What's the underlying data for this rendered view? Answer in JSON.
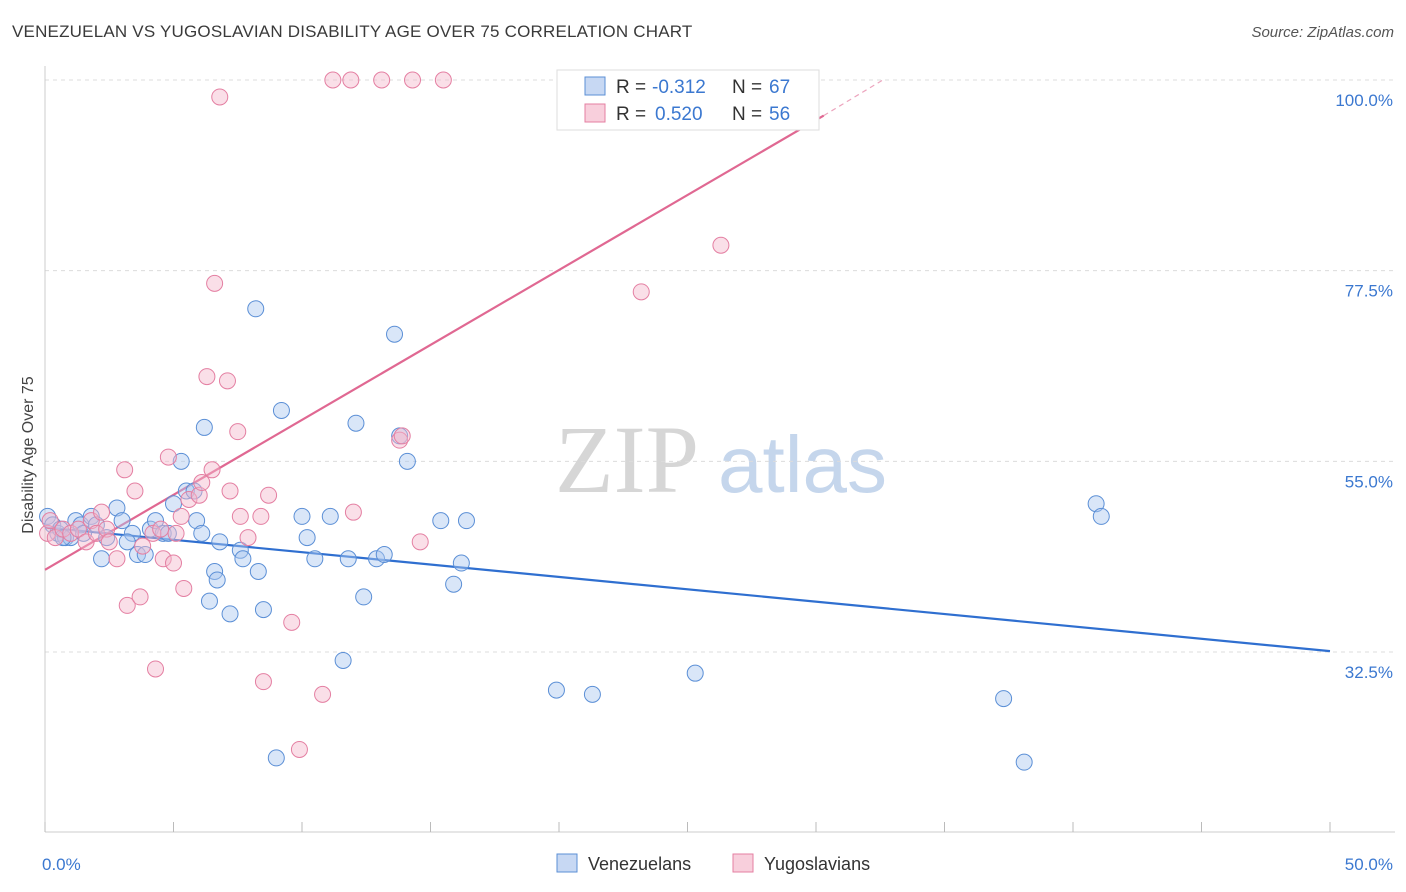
{
  "header": {
    "title": "VENEZUELAN VS YUGOSLAVIAN DISABILITY AGE OVER 75 CORRELATION CHART",
    "source": "Source: ZipAtlas.com"
  },
  "watermark": {
    "zip": "ZIP",
    "atlas": "atlas"
  },
  "colors": {
    "venezuelans": "#5b8fd6",
    "yugoslavians": "#e47fa2",
    "venezuelans_line": "#2f6fd0",
    "yugoslavians_line": "#e06892",
    "axis_text": "#3b78d0"
  },
  "stats_legend": {
    "r_label": "R =",
    "n_label": "N =",
    "venezuelans": {
      "r": "-0.312",
      "n": "67"
    },
    "yugoslavians": {
      "r": "0.520",
      "n": "56"
    }
  },
  "chart_data": {
    "type": "scatter",
    "title": "VENEZUELAN VS YUGOSLAVIAN DISABILITY AGE OVER 75 CORRELATION CHART",
    "xlabel": "",
    "ylabel": "Disability Age Over 75",
    "xlim": [
      0,
      50
    ],
    "ylim": [
      14,
      103
    ],
    "x_tick_labels": [
      "0.0%",
      "50.0%"
    ],
    "y_ticks": [
      32.5,
      55.0,
      77.5,
      100.0
    ],
    "y_tick_labels": [
      "32.5%",
      "55.0%",
      "77.5%",
      "100.0%"
    ],
    "grid": true,
    "legend_position": "bottom-center",
    "series": [
      {
        "name": "Venezuelans",
        "points": [
          [
            0.1,
            48.5
          ],
          [
            0.3,
            47.5
          ],
          [
            0.5,
            46.5
          ],
          [
            0.6,
            47
          ],
          [
            0.8,
            46
          ],
          [
            1.0,
            46
          ],
          [
            1.2,
            48
          ],
          [
            1.4,
            47.5
          ],
          [
            1.8,
            48.5
          ],
          [
            2.2,
            43.5
          ],
          [
            2.4,
            46
          ],
          [
            2.8,
            49.5
          ],
          [
            3.0,
            48
          ],
          [
            3.4,
            46.5
          ],
          [
            3.6,
            44
          ],
          [
            3.9,
            44
          ],
          [
            4.1,
            47
          ],
          [
            4.3,
            48
          ],
          [
            4.6,
            46.5
          ],
          [
            4.8,
            46.5
          ],
          [
            5.0,
            50
          ],
          [
            5.3,
            55
          ],
          [
            5.5,
            51.5
          ],
          [
            5.8,
            51.5
          ],
          [
            5.9,
            48
          ],
          [
            6.1,
            46.5
          ],
          [
            6.2,
            59
          ],
          [
            6.4,
            38.5
          ],
          [
            6.6,
            42
          ],
          [
            6.7,
            41
          ],
          [
            6.8,
            45.5
          ],
          [
            7.2,
            37
          ],
          [
            7.6,
            44.5
          ],
          [
            7.7,
            43.5
          ],
          [
            8.2,
            73
          ],
          [
            8.3,
            42
          ],
          [
            8.5,
            37.5
          ],
          [
            9.0,
            20
          ],
          [
            9.2,
            61
          ],
          [
            10.2,
            46
          ],
          [
            10.0,
            48.5
          ],
          [
            10.5,
            43.5
          ],
          [
            11.1,
            48.5
          ],
          [
            11.6,
            31.5
          ],
          [
            11.8,
            43.5
          ],
          [
            12.1,
            59.5
          ],
          [
            12.4,
            39
          ],
          [
            12.9,
            43.5
          ],
          [
            13.2,
            44
          ],
          [
            13.6,
            70
          ],
          [
            13.8,
            58
          ],
          [
            14.1,
            55
          ],
          [
            15.4,
            48
          ],
          [
            15.9,
            40.5
          ],
          [
            16.2,
            43
          ],
          [
            16.4,
            48
          ],
          [
            19.9,
            28
          ],
          [
            21.3,
            27.5
          ],
          [
            25.3,
            30
          ],
          [
            37.3,
            27
          ],
          [
            38.1,
            19.5
          ],
          [
            40.9,
            50
          ],
          [
            41.1,
            48.5
          ],
          [
            0.7,
            46
          ],
          [
            1.5,
            46.5
          ],
          [
            2.0,
            47.5
          ],
          [
            3.2,
            45.5
          ]
        ]
      },
      {
        "name": "Yugoslavians",
        "points": [
          [
            0.1,
            46.5
          ],
          [
            0.2,
            48
          ],
          [
            0.4,
            46
          ],
          [
            0.7,
            47
          ],
          [
            1.0,
            46.5
          ],
          [
            1.3,
            47
          ],
          [
            1.6,
            45.5
          ],
          [
            1.8,
            48
          ],
          [
            2.0,
            46.5
          ],
          [
            2.2,
            49
          ],
          [
            2.4,
            47
          ],
          [
            2.5,
            45.5
          ],
          [
            2.8,
            43.5
          ],
          [
            3.1,
            54
          ],
          [
            3.2,
            38
          ],
          [
            3.5,
            51.5
          ],
          [
            3.7,
            39
          ],
          [
            3.8,
            45
          ],
          [
            4.2,
            46.5
          ],
          [
            4.3,
            30.5
          ],
          [
            4.5,
            47
          ],
          [
            4.6,
            43.5
          ],
          [
            4.8,
            55.5
          ],
          [
            5.0,
            43
          ],
          [
            5.1,
            46.5
          ],
          [
            5.3,
            48.5
          ],
          [
            5.4,
            40
          ],
          [
            5.6,
            50.5
          ],
          [
            6.0,
            51
          ],
          [
            6.1,
            52.5
          ],
          [
            6.3,
            65
          ],
          [
            6.5,
            54
          ],
          [
            6.6,
            76
          ],
          [
            6.8,
            98
          ],
          [
            7.1,
            64.5
          ],
          [
            7.2,
            51.5
          ],
          [
            7.5,
            58.5
          ],
          [
            7.6,
            48.5
          ],
          [
            7.9,
            46
          ],
          [
            8.4,
            48.5
          ],
          [
            8.5,
            29
          ],
          [
            8.7,
            51
          ],
          [
            9.6,
            36
          ],
          [
            9.9,
            21
          ],
          [
            10.8,
            27.5
          ],
          [
            11.2,
            100
          ],
          [
            11.9,
            100
          ],
          [
            12.0,
            49
          ],
          [
            13.1,
            100
          ],
          [
            13.8,
            57.5
          ],
          [
            13.9,
            58
          ],
          [
            14.3,
            100
          ],
          [
            14.6,
            45.5
          ],
          [
            15.5,
            100
          ],
          [
            23.2,
            75
          ],
          [
            26.3,
            80.5
          ]
        ]
      }
    ],
    "trend_lines": [
      {
        "series": "Venezuelans",
        "x": [
          0,
          50
        ],
        "y": [
          47.2,
          32.6
        ]
      },
      {
        "series": "Yugoslavians",
        "x": [
          0,
          30.3
        ],
        "y": [
          42.2,
          95.8
        ],
        "dashed_extension_to": [
          32.6,
          100.0
        ]
      }
    ]
  },
  "bottom_legend": {
    "venezuelans": "Venezuelans",
    "yugoslavians": "Yugoslavians"
  }
}
